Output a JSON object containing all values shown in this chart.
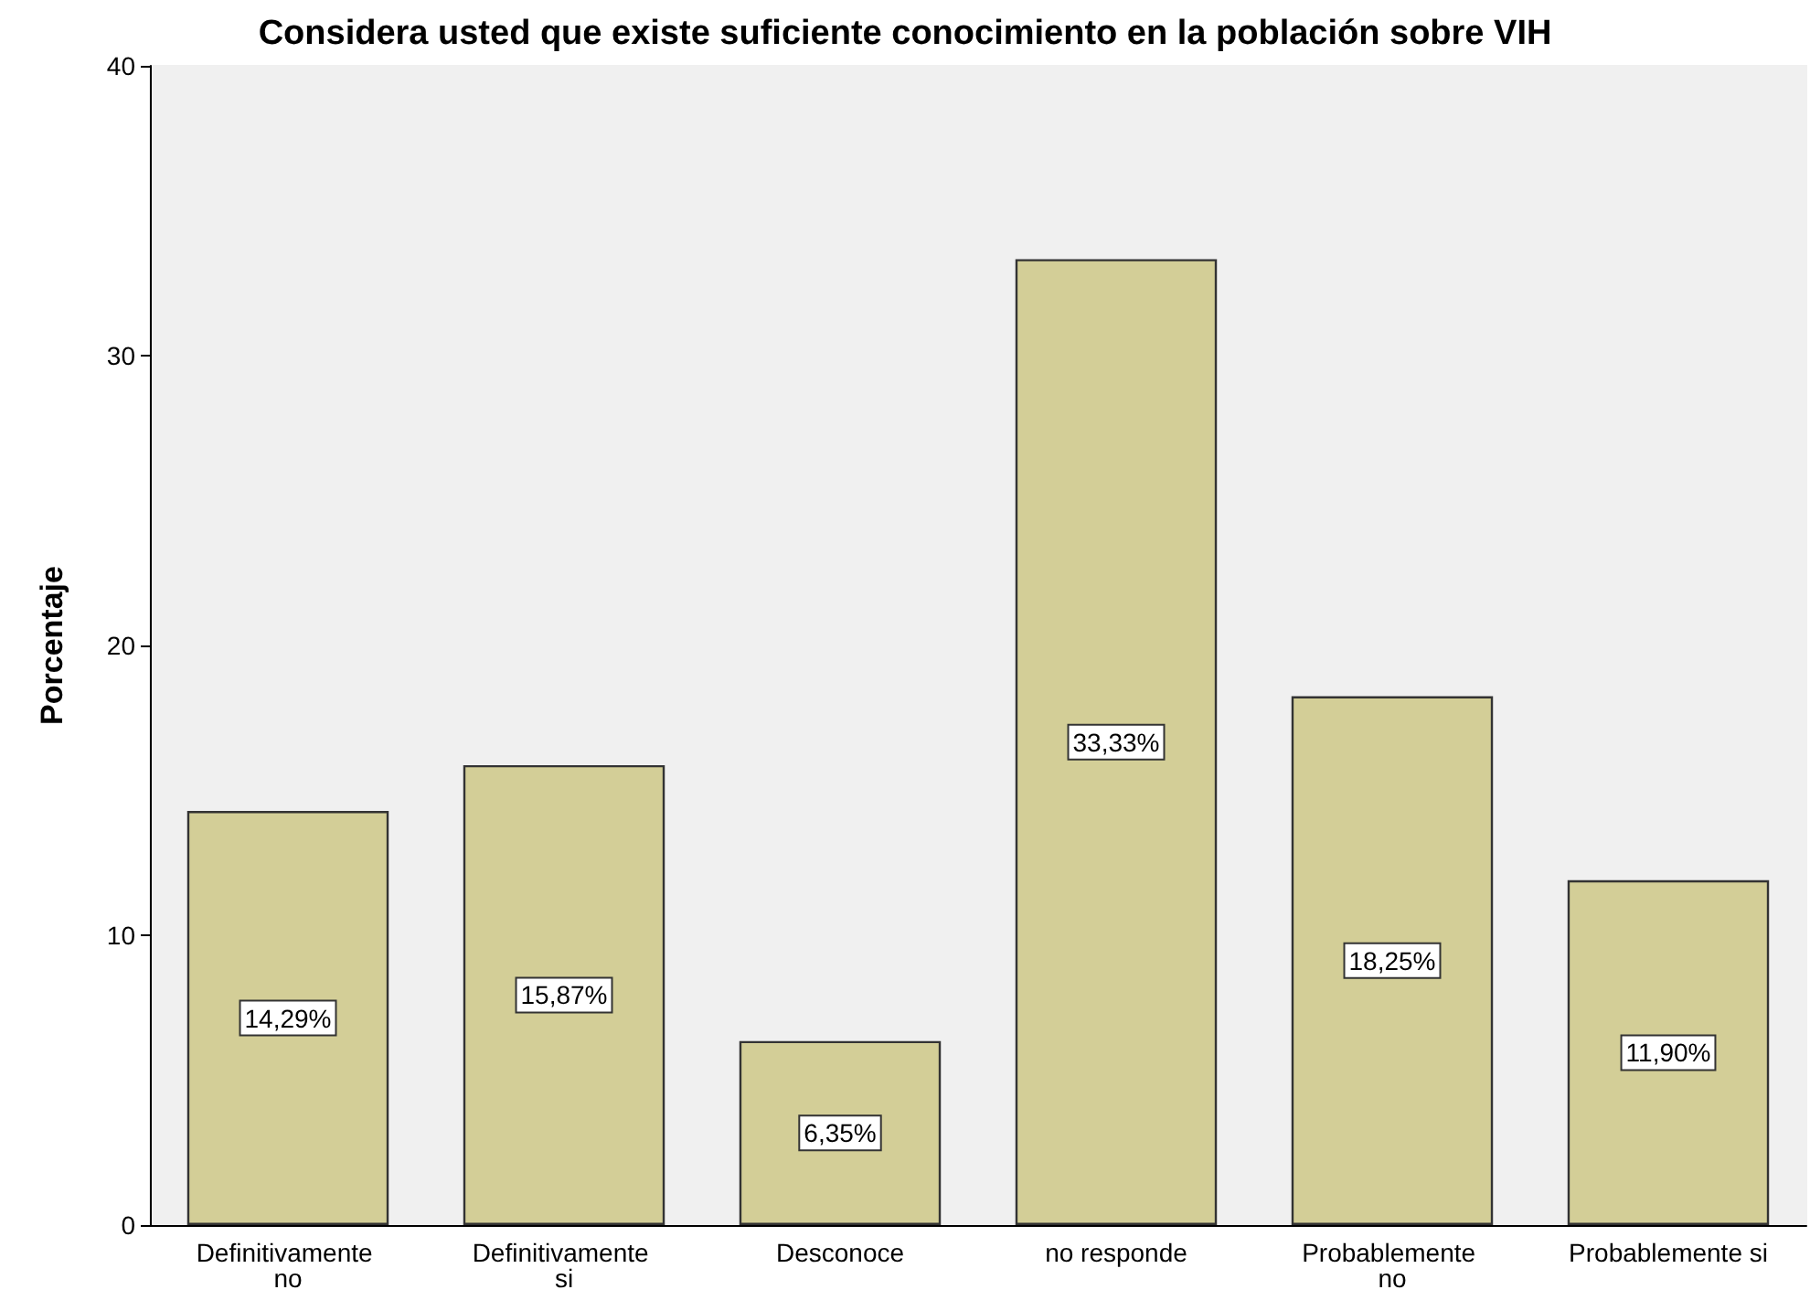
{
  "chart_data": {
    "type": "bar",
    "title": "Considera usted que existe suficiente conocimiento en la población sobre VIH",
    "ylabel": "Porcentaje",
    "categories": [
      "Definitivamente no",
      "Definitivamente si",
      "Desconoce",
      "no responde",
      "Probablemente no",
      "Probablemente si"
    ],
    "values": [
      14.29,
      15.87,
      6.35,
      33.33,
      18.25,
      11.9
    ],
    "value_labels": [
      "14,29%",
      "15,87%",
      "6,35%",
      "33,33%",
      "18,25%",
      "11,90%"
    ],
    "color": "#d3ce97",
    "ylim": [
      0,
      40
    ],
    "yticks": [
      0,
      10,
      20,
      30,
      40
    ],
    "grid": false
  }
}
